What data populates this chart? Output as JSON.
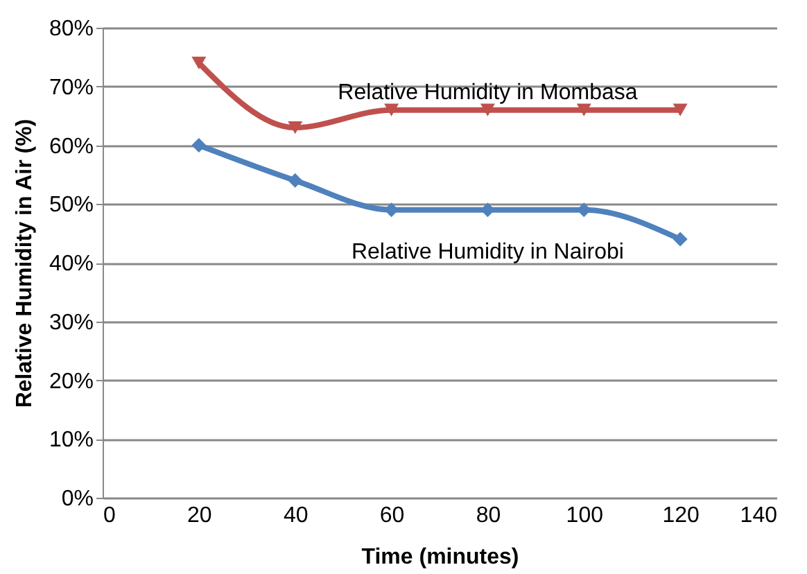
{
  "chart_data": {
    "type": "line",
    "xlabel": "Time (minutes)",
    "ylabel": "Relative Humidity in Air (%)",
    "x": [
      20,
      40,
      60,
      80,
      100,
      120
    ],
    "series": [
      {
        "name": "Relative Humidity in Mombasa",
        "color": "#c0504d",
        "marker": "triangle",
        "values": [
          74,
          63,
          66,
          66,
          66,
          66
        ]
      },
      {
        "name": "Relative Humidity in Nairobi",
        "color": "#4f81bd",
        "marker": "diamond",
        "values": [
          60,
          54,
          49,
          49,
          49,
          44
        ]
      }
    ],
    "xlim": [
      0,
      140
    ],
    "xticks": [
      0,
      20,
      40,
      60,
      80,
      100,
      120,
      140
    ],
    "ylim": [
      0,
      80
    ],
    "yticks": [
      {
        "value": 0,
        "label": "0%"
      },
      {
        "value": 10,
        "label": "10%"
      },
      {
        "value": 20,
        "label": "20%"
      },
      {
        "value": 30,
        "label": "30%"
      },
      {
        "value": 40,
        "label": "40%"
      },
      {
        "value": 50,
        "label": "50%"
      },
      {
        "value": 60,
        "label": "60%"
      },
      {
        "value": 70,
        "label": "70%"
      },
      {
        "value": 80,
        "label": "80%"
      }
    ],
    "grid": "y"
  }
}
